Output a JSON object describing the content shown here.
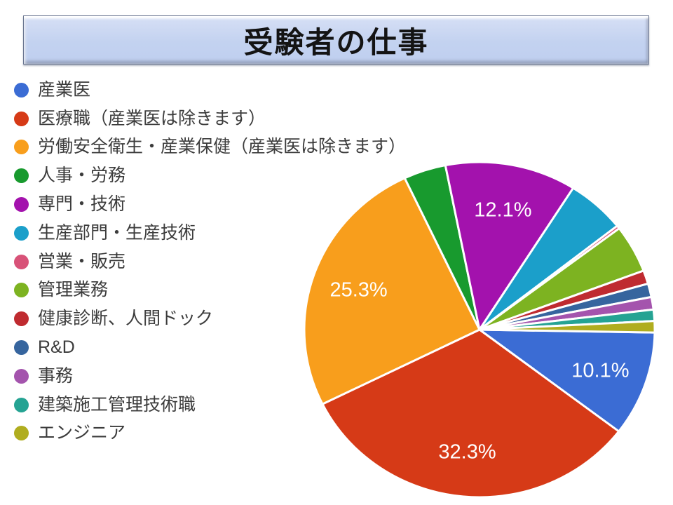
{
  "slide": {
    "title": "受験者の仕事",
    "background_color": "#ffffff",
    "banner_fill_color": "#c3d2f0",
    "banner_border_color": "#68748f"
  },
  "chart_data": {
    "type": "pie",
    "title": "受験者の仕事",
    "legend_position": "left",
    "direction": "clockwise",
    "start_angle_deg": -1,
    "label_threshold_pct": 10,
    "label_color": "#ffffff",
    "slice_gap_color": "#ffffff",
    "slices": [
      {
        "label": "産業医",
        "value": 10.1,
        "color": "#3b6cd4",
        "pct_label": "10.1%"
      },
      {
        "label": "医療職（産業医は除きます）",
        "value": 32.3,
        "color": "#d63a17",
        "pct_label": "32.3%"
      },
      {
        "label": "労働安全衛生・産業保健（産業医は除きます）",
        "value": 25.3,
        "color": "#f89e1c",
        "pct_label": "25.3%"
      },
      {
        "label": "人事・労務",
        "value": 3.9,
        "color": "#189a2e",
        "pct_label": ""
      },
      {
        "label": "専門・技術",
        "value": 12.1,
        "color": "#a312ad",
        "pct_label": "12.1%"
      },
      {
        "label": "生産部門・生産技術",
        "value": 5.4,
        "color": "#1b9fca",
        "pct_label": ""
      },
      {
        "label": "営業・販売",
        "value": 0.3,
        "color": "#d85278",
        "pct_label": ""
      },
      {
        "label": "管理業務",
        "value": 4.6,
        "color": "#7db321",
        "pct_label": ""
      },
      {
        "label": "健康診断、人間ドック",
        "value": 1.3,
        "color": "#bf2b30",
        "pct_label": ""
      },
      {
        "label": "R&D",
        "value": 1.3,
        "color": "#36659e",
        "pct_label": ""
      },
      {
        "label": "事務",
        "value": 1.2,
        "color": "#a454ad",
        "pct_label": ""
      },
      {
        "label": "建築施工管理技術職",
        "value": 1.1,
        "color": "#25a393",
        "pct_label": ""
      },
      {
        "label": "エンジニア",
        "value": 1.1,
        "color": "#b0ad1f",
        "pct_label": ""
      }
    ]
  }
}
